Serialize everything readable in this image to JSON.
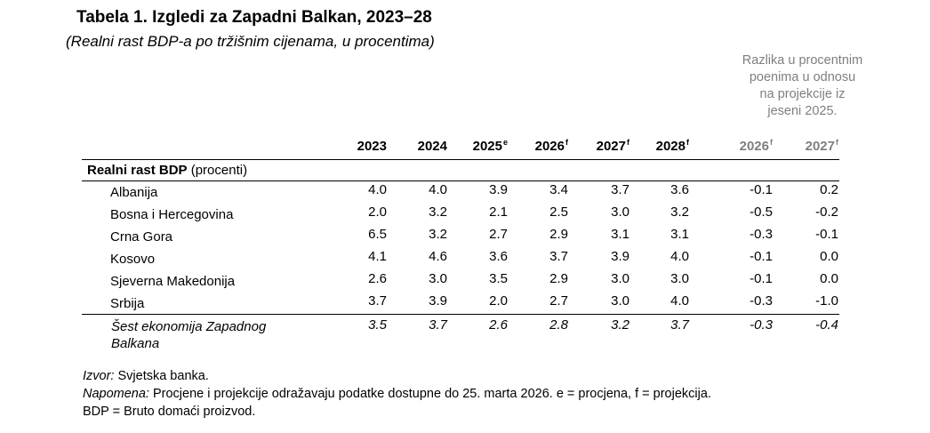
{
  "title": "Tabela 1. Izgledi za Zapadni Balkan, 2023–28",
  "subtitle": "(Realni rast BDP-a po tržišnim cijenama, u procentima)",
  "diff_note": [
    "Razlika u procentnim",
    "poenima u odnosu",
    "na projekcije iz",
    "jeseni 2025."
  ],
  "columns": [
    {
      "year": "2023",
      "sup": ""
    },
    {
      "year": "2024",
      "sup": ""
    },
    {
      "year": "2025",
      "sup": "e"
    },
    {
      "year": "2026",
      "sup": "f"
    },
    {
      "year": "2027",
      "sup": "f"
    },
    {
      "year": "2028",
      "sup": "f"
    },
    {
      "year": "2026",
      "sup": "f"
    },
    {
      "year": "2027",
      "sup": "f"
    }
  ],
  "section": {
    "bold": "Realni rast BDP",
    "rest": " (procenti)"
  },
  "rows": [
    {
      "name": "Albanija",
      "values": [
        "4.0",
        "4.0",
        "3.9",
        "3.4",
        "3.7",
        "3.6",
        "-0.1",
        "0.2"
      ]
    },
    {
      "name": "Bosna i Hercegovina",
      "values": [
        "2.0",
        "3.2",
        "2.1",
        "2.5",
        "3.0",
        "3.2",
        "-0.5",
        "-0.2"
      ]
    },
    {
      "name": "Crna Gora",
      "values": [
        "6.5",
        "3.2",
        "2.7",
        "2.9",
        "3.1",
        "3.1",
        "-0.3",
        "-0.1"
      ]
    },
    {
      "name": "Kosovo",
      "values": [
        "4.1",
        "4.6",
        "3.6",
        "3.7",
        "3.9",
        "4.0",
        "-0.1",
        "0.0"
      ]
    },
    {
      "name": "Sjeverna Makedonija",
      "values": [
        "2.6",
        "3.0",
        "3.5",
        "2.9",
        "3.0",
        "3.0",
        "-0.1",
        "0.0"
      ]
    },
    {
      "name": "Srbija",
      "values": [
        "3.7",
        "3.9",
        "2.0",
        "2.7",
        "3.0",
        "4.0",
        "-0.3",
        "-1.0"
      ]
    }
  ],
  "total": {
    "name": "Šest ekonomija Zapadnog Balkana",
    "values": [
      "3.5",
      "3.7",
      "2.6",
      "2.8",
      "3.2",
      "3.7",
      "-0.3",
      "-0.4"
    ]
  },
  "notes": {
    "source_label": "Izvor:",
    "source_text": " Svjetska banka.",
    "note_label": "Napomena:",
    "note_text": " Procjene i projekcije odražavaju podatke dostupne do 25. marta 2026. e = procjena, f = projekcija.",
    "abbr": "BDP = Bruto domaći proizvod."
  }
}
